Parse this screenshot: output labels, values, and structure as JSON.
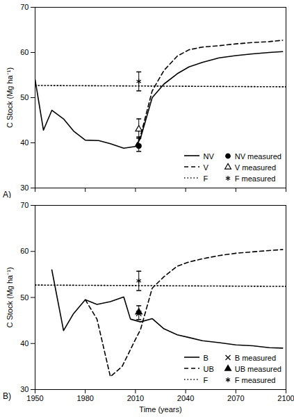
{
  "chart_data": [
    {
      "type": "line",
      "title": "A)",
      "y_label": "C Stock (Mg ha⁻¹)",
      "xlim": [
        1950,
        2100
      ],
      "xticks": [
        1950,
        1980,
        2010,
        2040,
        2070,
        2100
      ],
      "ylim": [
        30,
        70
      ],
      "yticks": [
        30,
        40,
        50,
        60,
        70
      ],
      "tick_labels": "y",
      "legend": "lower right",
      "series": [
        {
          "name": "NV",
          "type": "line",
          "line_style": "solid",
          "color": "#000000",
          "x": [
            1950,
            1955,
            1960,
            1967,
            1973,
            1980,
            1988,
            1995,
            2003,
            2010,
            2013,
            2020,
            2027,
            2035,
            2042,
            2050,
            2060,
            2070,
            2080,
            2090,
            2098
          ],
          "values": [
            54,
            42.8,
            47.2,
            45.3,
            42.6,
            40.6,
            40.5,
            39.8,
            38.8,
            39.2,
            41,
            50,
            53,
            55.3,
            56.8,
            57.8,
            58.8,
            59.3,
            59.7,
            60,
            60.2
          ]
        },
        {
          "name": "V",
          "type": "line",
          "line_style": "dashed",
          "color": "#000000",
          "x": [
            2010,
            2013,
            2020,
            2027,
            2035,
            2042,
            2050,
            2060,
            2070,
            2080,
            2090,
            2098
          ],
          "values": [
            39.2,
            41.5,
            51.5,
            56,
            59.2,
            60.6,
            61.2,
            61.5,
            61.9,
            62.2,
            62.4,
            62.7
          ]
        },
        {
          "name": "F",
          "type": "line",
          "line_style": "dotted",
          "color": "#000000",
          "x": [
            1950,
            2100
          ],
          "values": [
            52.7,
            52.4
          ]
        },
        {
          "name": "NV measured",
          "type": "scatter",
          "marker": "circle",
          "color": "#000000",
          "x": [
            2012
          ],
          "values": [
            39.3
          ],
          "error_low": [
            38.1
          ],
          "error_high": [
            41.3
          ]
        },
        {
          "name": "V measured",
          "type": "scatter",
          "marker": "triangle_open",
          "color": "#000000",
          "x": [
            2012
          ],
          "values": [
            43
          ],
          "error_low": [
            41
          ],
          "error_high": [
            45.3
          ]
        },
        {
          "name": "F measured",
          "type": "scatter",
          "marker": "asterisk",
          "color": "#000000",
          "x": [
            2012
          ],
          "values": [
            53.6
          ],
          "error_low": [
            51.5
          ],
          "error_high": [
            55.7
          ]
        }
      ]
    },
    {
      "type": "line",
      "title": "B)",
      "x_label": "Time (years)",
      "y_label": "C Stock (Mg ha⁻¹)",
      "xlim": [
        1950,
        2100
      ],
      "xticks": [
        1950,
        1980,
        2010,
        2040,
        2070,
        2100
      ],
      "ylim": [
        30,
        70
      ],
      "yticks": [
        30,
        40,
        50,
        60,
        70
      ],
      "legend": "lower right",
      "series": [
        {
          "name": "B",
          "type": "line",
          "line_style": "solid",
          "color": "#000000",
          "x": [
            1960,
            1967,
            1973,
            1980,
            1987,
            1995,
            2003,
            2007,
            2013,
            2020,
            2027,
            2035,
            2042,
            2050,
            2060,
            2070,
            2080,
            2090,
            2098
          ],
          "values": [
            56,
            42.8,
            46.5,
            49.5,
            48.5,
            49.1,
            50.1,
            45.3,
            44.7,
            45.4,
            43.2,
            41.9,
            41.3,
            40.6,
            40.2,
            39.7,
            39.5,
            39.1,
            39
          ]
        },
        {
          "name": "UB",
          "type": "line",
          "line_style": "dashed",
          "color": "#000000",
          "x": [
            1980,
            1987,
            1995,
            2002,
            2010,
            2013,
            2020,
            2027,
            2035,
            2042,
            2050,
            2060,
            2070,
            2080,
            2090,
            2098
          ],
          "values": [
            49.5,
            45.3,
            32.8,
            35,
            40.9,
            43,
            52,
            54.5,
            56.8,
            57.7,
            58.4,
            59.1,
            59.6,
            59.9,
            60.2,
            60.4
          ]
        },
        {
          "name": "F",
          "type": "line",
          "line_style": "dotted",
          "color": "#000000",
          "x": [
            1950,
            2100
          ],
          "values": [
            52.7,
            52.4
          ]
        },
        {
          "name": "B measured",
          "type": "scatter",
          "marker": "cross",
          "color": "#000000",
          "x": [
            2012
          ],
          "values": [
            46.5
          ]
        },
        {
          "name": "UB measured",
          "type": "scatter",
          "marker": "triangle",
          "color": "#000000",
          "x": [
            2012
          ],
          "values": [
            46.8
          ],
          "error_low": [
            45.2
          ],
          "error_high": [
            48.2
          ]
        },
        {
          "name": "F measured",
          "type": "scatter",
          "marker": "asterisk",
          "color": "#000000",
          "x": [
            2012
          ],
          "values": [
            53.6
          ],
          "error_low": [
            51.5
          ],
          "error_high": [
            55.7
          ]
        }
      ]
    }
  ]
}
